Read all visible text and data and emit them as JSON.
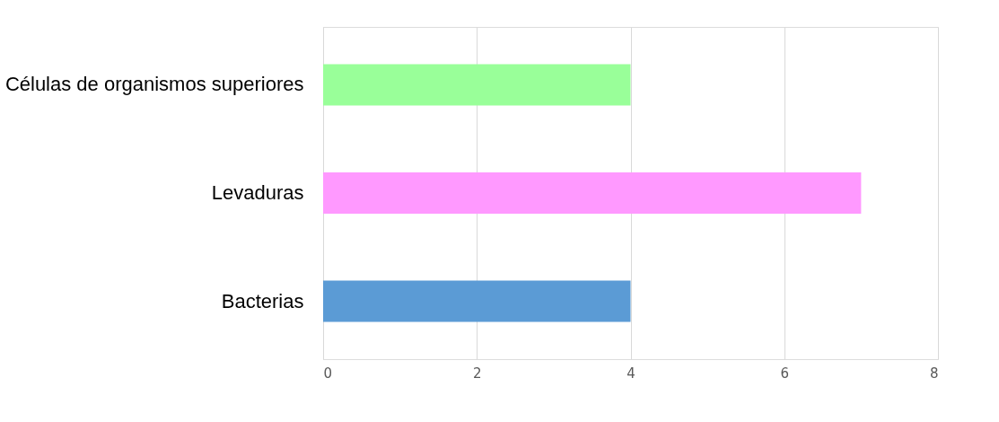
{
  "chart_data": {
    "type": "bar",
    "orientation": "horizontal",
    "categories": [
      "Células de organismos superiores",
      "Levaduras",
      "Bacterias"
    ],
    "values": [
      4,
      7,
      4
    ],
    "colors": [
      "#99ff99",
      "#ff99ff",
      "#5b9bd5"
    ],
    "xlim": [
      0,
      8
    ],
    "xticks": [
      0,
      2,
      4,
      6,
      8
    ],
    "grid": "x"
  }
}
